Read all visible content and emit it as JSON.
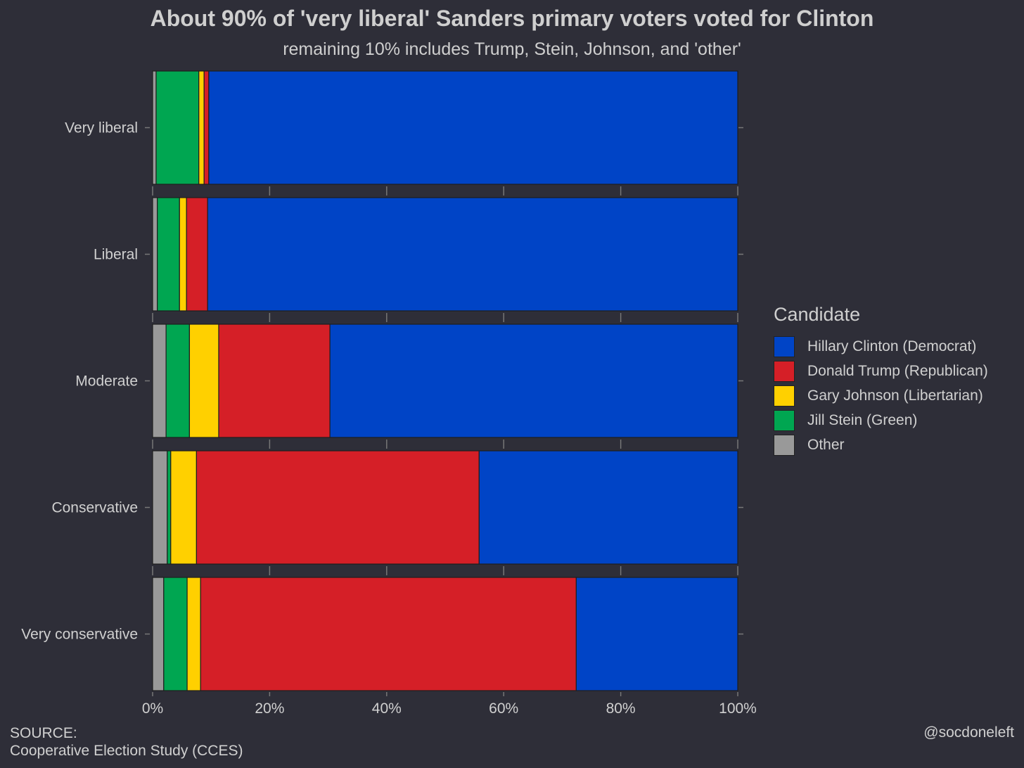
{
  "title": "About 90% of 'very liberal' Sanders primary voters voted for Clinton",
  "subtitle": "remaining 10% includes Trump, Stein, Johnson, and 'other'",
  "source_label": "SOURCE:",
  "source_text": "Cooperative Election Study (CCES)",
  "handle": "@socdoneleft",
  "legend": {
    "title": "Candidate",
    "items": [
      {
        "label": "Hillary Clinton (Democrat)",
        "color": "#0044c6"
      },
      {
        "label": "Donald Trump (Republican)",
        "color": "#d51f27"
      },
      {
        "label": "Gary Johnson (Libertarian)",
        "color": "#ffd000"
      },
      {
        "label": "Jill Stein (Green)",
        "color": "#00a651"
      },
      {
        "label": "Other",
        "color": "#999999"
      }
    ]
  },
  "chart_data": {
    "type": "bar",
    "orientation": "horizontal",
    "stacked": true,
    "categories": [
      "Very liberal",
      "Liberal",
      "Moderate",
      "Conservative",
      "Very conservative"
    ],
    "series": [
      {
        "name": "Other",
        "color": "#999999",
        "values": [
          0.6,
          0.8,
          2.3,
          2.5,
          1.9
        ]
      },
      {
        "name": "Jill Stein (Green)",
        "color": "#00a651",
        "values": [
          7.3,
          3.8,
          4.0,
          0.6,
          4.0
        ]
      },
      {
        "name": "Gary Johnson (Libertarian)",
        "color": "#ffd000",
        "values": [
          0.9,
          1.2,
          5.0,
          4.4,
          2.3
        ]
      },
      {
        "name": "Donald Trump (Republican)",
        "color": "#d51f27",
        "values": [
          0.8,
          3.6,
          19.0,
          48.3,
          64.2
        ]
      },
      {
        "name": "Hillary Clinton (Democrat)",
        "color": "#0044c6",
        "values": [
          90.4,
          90.6,
          69.7,
          44.2,
          27.6
        ]
      }
    ],
    "xlim": [
      0,
      100
    ],
    "xticks": [
      "0%",
      "20%",
      "40%",
      "60%",
      "80%",
      "100%"
    ],
    "xlabel": "",
    "ylabel": "",
    "legend_position": "right",
    "grid": true
  }
}
